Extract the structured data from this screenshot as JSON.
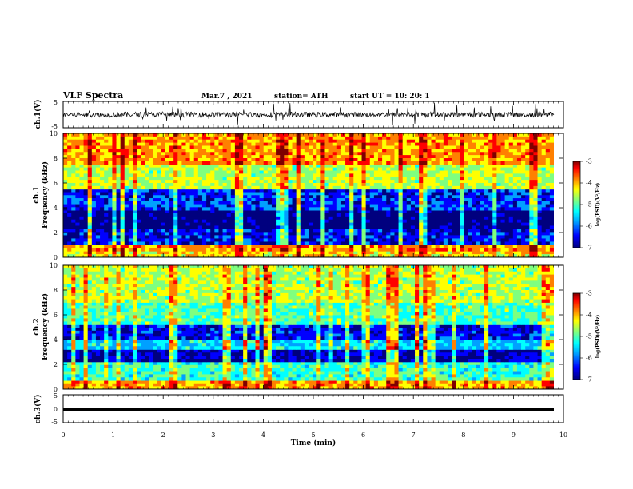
{
  "header": {
    "title": "VLF Spectra",
    "date": "Mar.7 , 2021",
    "station": "station= ATH",
    "start": "start  UT =   10: 20: 1"
  },
  "colors": {
    "colormap": [
      "#00007f",
      "#0000ff",
      "#00a0ff",
      "#00ffff",
      "#7fff7f",
      "#ffff00",
      "#ff8000",
      "#ff0000",
      "#7f0000"
    ],
    "trace": "#000000"
  },
  "chart_data": [
    {
      "type": "line",
      "name": "ch1-waveform",
      "ylabel": "ch.1(V)",
      "ylim": [
        -5,
        5
      ],
      "ytick_labels": [
        "5",
        "-5"
      ],
      "baseline": 0,
      "description_values": {
        "typical_amplitude": 1.0,
        "max_spike": 4.5
      }
    },
    {
      "type": "heatmap",
      "name": "ch1-spectrogram",
      "ylabel": "ch.1\nFrequency (kHz)",
      "ylim": [
        0,
        10
      ],
      "ytick_labels": [
        "0",
        "2",
        "4",
        "6",
        "8",
        "10"
      ],
      "xlim": [
        0,
        10
      ],
      "colorbar": {
        "label": "log(PSD)(V²/Hz)",
        "range": [
          -7,
          -3
        ],
        "tick_labels": [
          "-3",
          "-4",
          "-5",
          "-6",
          "-7"
        ]
      },
      "bands": [
        {
          "f_low": 0.0,
          "f_high": 0.5,
          "log_psd": -4.5
        },
        {
          "f_low": 0.5,
          "f_high": 1.0,
          "log_psd": -4.2
        },
        {
          "f_low": 1.0,
          "f_high": 2.3,
          "log_psd": -6.4
        },
        {
          "f_low": 2.3,
          "f_high": 3.8,
          "log_psd": -6.9
        },
        {
          "f_low": 3.8,
          "f_high": 5.5,
          "log_psd": -6.3
        },
        {
          "f_low": 5.5,
          "f_high": 7.5,
          "log_psd": -4.8
        },
        {
          "f_low": 7.5,
          "f_high": 10.0,
          "log_psd": -4.2
        }
      ]
    },
    {
      "type": "heatmap",
      "name": "ch2-spectrogram",
      "ylabel": "ch.2\nFrequency (kHz)",
      "ylim": [
        0,
        10
      ],
      "ytick_labels": [
        "0",
        "2",
        "4",
        "6",
        "8",
        "10"
      ],
      "xlim": [
        0,
        10
      ],
      "colorbar": {
        "label": "log(PSD)(V²/Hz)",
        "range": [
          -7,
          -3
        ],
        "tick_labels": [
          "-3",
          "-4",
          "-5",
          "-6",
          "-7"
        ]
      },
      "bands": [
        {
          "f_low": 0.0,
          "f_high": 0.7,
          "log_psd": -4.3
        },
        {
          "f_low": 0.7,
          "f_high": 2.2,
          "log_psd": -5.3
        },
        {
          "f_low": 2.2,
          "f_high": 3.2,
          "log_psd": -6.6
        },
        {
          "f_low": 3.2,
          "f_high": 4.0,
          "log_psd": -5.6
        },
        {
          "f_low": 4.0,
          "f_high": 5.2,
          "log_psd": -6.4
        },
        {
          "f_low": 5.2,
          "f_high": 7.0,
          "log_psd": -5.2
        },
        {
          "f_low": 7.0,
          "f_high": 10.0,
          "log_psd": -4.8
        }
      ]
    },
    {
      "type": "line",
      "name": "ch3-waveform",
      "ylabel": "ch.3(V)",
      "ylim": [
        -5,
        5
      ],
      "ytick_labels": [
        "5",
        "0",
        "-5"
      ],
      "baseline": 0
    }
  ],
  "xaxis": {
    "label": "Time  (min)",
    "xlim": [
      0,
      10
    ],
    "tick_labels": [
      "0",
      "1",
      "2",
      "3",
      "4",
      "5",
      "6",
      "7",
      "8",
      "9",
      "10"
    ]
  }
}
